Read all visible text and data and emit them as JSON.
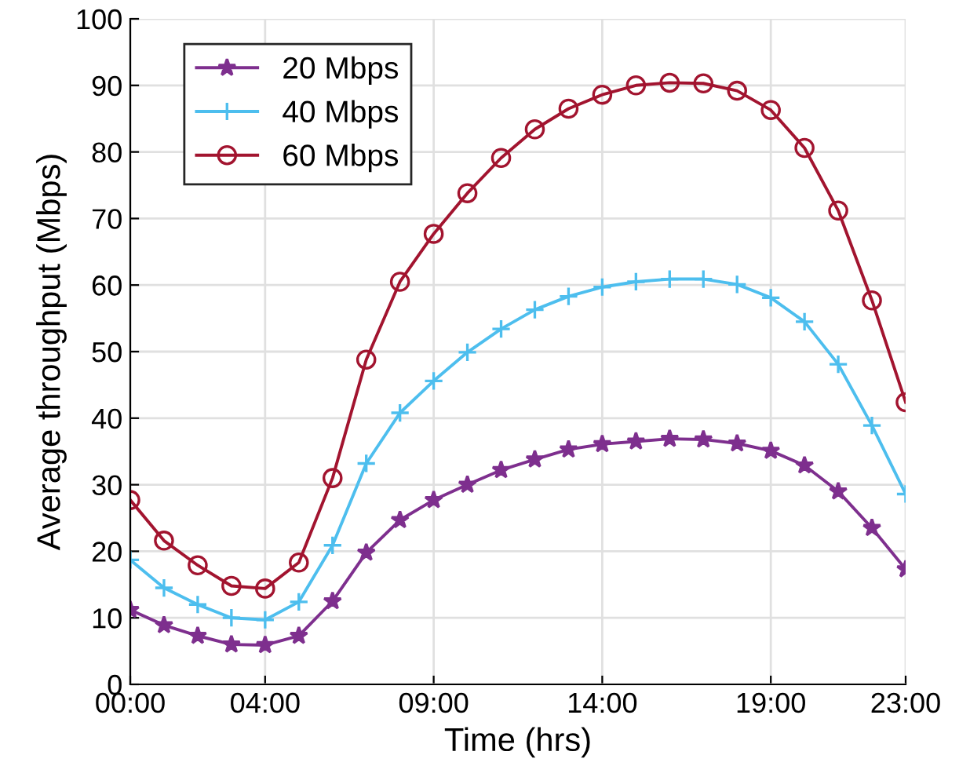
{
  "chart_data": {
    "type": "line",
    "xlabel": "Time (hrs)",
    "ylabel": "Average throughput (Mbps)",
    "x": [
      0,
      1,
      2,
      3,
      4,
      5,
      6,
      7,
      8,
      9,
      10,
      11,
      12,
      13,
      14,
      15,
      16,
      17,
      18,
      19,
      20,
      21,
      22,
      23
    ],
    "series": [
      {
        "name": "20 Mbps",
        "color": "#7e2f8e",
        "marker": "star",
        "values": [
          11.2,
          8.9,
          7.3,
          6.0,
          5.9,
          7.3,
          12.5,
          19.8,
          24.7,
          27.7,
          30.0,
          32.2,
          33.8,
          35.3,
          36.1,
          36.5,
          36.9,
          36.8,
          36.2,
          35.1,
          32.9,
          29.0,
          23.5,
          17.3
        ]
      },
      {
        "name": "40 Mbps",
        "color": "#4dbeee",
        "marker": "cross",
        "values": [
          18.7,
          14.5,
          12.0,
          10.0,
          9.7,
          12.4,
          20.9,
          33.2,
          40.8,
          45.6,
          49.9,
          53.4,
          56.3,
          58.3,
          59.7,
          60.5,
          60.9,
          60.9,
          60.1,
          58.1,
          54.5,
          48.1,
          38.9,
          28.6
        ]
      },
      {
        "name": "60 Mbps",
        "color": "#a2142f",
        "marker": "circle",
        "values": [
          27.7,
          21.6,
          17.9,
          14.8,
          14.4,
          18.3,
          31.0,
          48.8,
          60.5,
          67.7,
          73.8,
          79.1,
          83.4,
          86.5,
          88.6,
          90.0,
          90.4,
          90.3,
          89.2,
          86.3,
          80.6,
          71.2,
          57.7,
          42.4
        ]
      }
    ],
    "xlim": [
      0,
      23
    ],
    "xticks": [
      {
        "value": 0,
        "label": "00:00"
      },
      {
        "value": 4,
        "label": "04:00"
      },
      {
        "value": 9,
        "label": "09:00"
      },
      {
        "value": 14,
        "label": "14:00"
      },
      {
        "value": 19,
        "label": "19:00"
      },
      {
        "value": 23,
        "label": "23:00"
      }
    ],
    "ylim": [
      0,
      100
    ],
    "yticks": [
      0,
      10,
      20,
      30,
      40,
      50,
      60,
      70,
      80,
      90,
      100
    ],
    "grid": true,
    "legend": "top left",
    "line_style": "solid"
  }
}
